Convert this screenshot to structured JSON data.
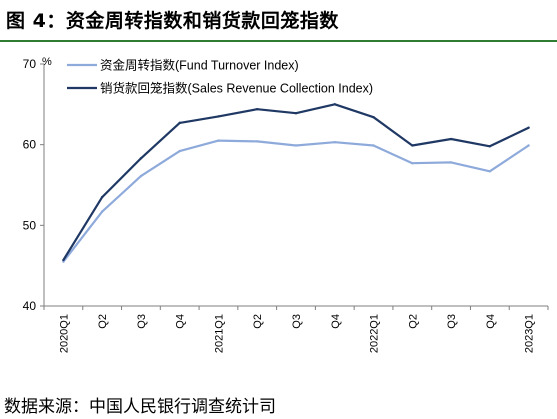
{
  "figure": {
    "title": "图 4：资金周转指数和销货款回笼指数",
    "source": "数据来源：中国人民银行调查统计司"
  },
  "chart_data": {
    "type": "line",
    "y_unit": "%",
    "ylim": [
      40,
      70
    ],
    "yticks": [
      40,
      50,
      60,
      70
    ],
    "categories": [
      "2020Q1",
      "Q2",
      "Q3",
      "Q4",
      "2021Q1",
      "Q2",
      "Q3",
      "Q4",
      "2022Q1",
      "Q2",
      "Q3",
      "Q4",
      "2023Q1"
    ],
    "legend_position": "top-left",
    "grid": false,
    "series": [
      {
        "name": "资金周转指数(Fund Turnover Index)",
        "color": "#8eaadb",
        "values": [
          45.5,
          51.7,
          56.1,
          59.2,
          60.5,
          60.4,
          59.9,
          60.3,
          59.9,
          57.7,
          57.8,
          56.7,
          59.9
        ]
      },
      {
        "name": "销货款回笼指数(Sales Revenue Collection Index)",
        "color": "#1f3864",
        "values": [
          45.7,
          53.5,
          58.3,
          62.7,
          63.5,
          64.4,
          63.9,
          65.0,
          63.4,
          59.9,
          60.7,
          59.8,
          62.1
        ]
      }
    ]
  }
}
